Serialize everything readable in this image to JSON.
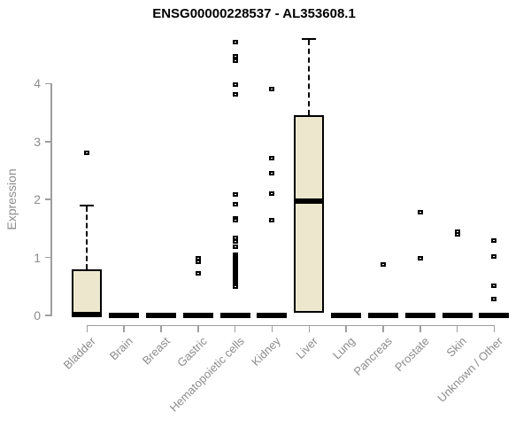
{
  "chart_data": {
    "type": "boxplot",
    "title": "ENSG00000228537 - AL353608.1",
    "xlabel": "",
    "ylabel": "Expression",
    "ylim": [
      0,
      4.9
    ],
    "yticks": [
      0,
      1,
      2,
      3,
      4
    ],
    "grid": false,
    "legend": null,
    "categories": [
      "Bladder",
      "Brain",
      "Breast",
      "Gastric",
      "Hematopoietic cells",
      "Kidney",
      "Liver",
      "Lung",
      "Pancreas",
      "Prostate",
      "Skin",
      "Unknown / Other"
    ],
    "series": [
      {
        "name": "Bladder",
        "q1": 0,
        "median": 0.02,
        "q3": 0.79,
        "whisker_low": 0,
        "whisker_high": 1.91,
        "outliers": [
          2.81
        ]
      },
      {
        "name": "Brain",
        "q1": 0,
        "median": 0,
        "q3": 0,
        "whisker_low": 0,
        "whisker_high": 0,
        "outliers": []
      },
      {
        "name": "Breast",
        "q1": 0,
        "median": 0,
        "q3": 0,
        "whisker_low": 0,
        "whisker_high": 0,
        "outliers": []
      },
      {
        "name": "Gastric",
        "q1": 0,
        "median": 0,
        "q3": 0,
        "whisker_low": 0,
        "whisker_high": 0,
        "outliers": [
          0.99,
          0.92,
          0.73
        ]
      },
      {
        "name": "Hematopoietic cells",
        "q1": 0,
        "median": 0,
        "q3": 0,
        "whisker_low": 0,
        "whisker_high": 0,
        "outliers": [
          4.71,
          4.48,
          4.39,
          3.99,
          3.82,
          2.09,
          1.92,
          1.67,
          1.64,
          1.34,
          1.27,
          1.19,
          1.04,
          1.01,
          0.98,
          0.95,
          0.92,
          0.89,
          0.86,
          0.83,
          0.8,
          0.77,
          0.74,
          0.71,
          0.68,
          0.65,
          0.62,
          0.59,
          0.56,
          0.53,
          0.5
        ]
      },
      {
        "name": "Kidney",
        "q1": 0,
        "median": 0,
        "q3": 0,
        "whisker_low": 0,
        "whisker_high": 0,
        "outliers": [
          3.91,
          2.72,
          2.45,
          2.11,
          1.64
        ]
      },
      {
        "name": "Liver",
        "q1": 0.05,
        "median": 1.98,
        "q3": 3.46,
        "whisker_low": 0.05,
        "whisker_high": 4.79,
        "outliers": []
      },
      {
        "name": "Lung",
        "q1": 0,
        "median": 0,
        "q3": 0,
        "whisker_low": 0,
        "whisker_high": 0,
        "outliers": []
      },
      {
        "name": "Pancreas",
        "q1": 0,
        "median": 0,
        "q3": 0,
        "whisker_low": 0,
        "whisker_high": 0,
        "outliers": [
          0.88
        ]
      },
      {
        "name": "Prostate",
        "q1": 0,
        "median": 0,
        "q3": 0,
        "whisker_low": 0,
        "whisker_high": 0,
        "outliers": [
          1.78,
          0.98
        ]
      },
      {
        "name": "Skin",
        "q1": 0,
        "median": 0,
        "q3": 0,
        "whisker_low": 0,
        "whisker_high": 0,
        "outliers": [
          1.44,
          1.4
        ]
      },
      {
        "name": "Unknown / Other",
        "q1": 0,
        "median": 0,
        "q3": 0,
        "whisker_low": 0,
        "whisker_high": 0,
        "outliers": [
          1.29,
          1.02,
          0.51,
          0.29
        ]
      }
    ],
    "colors": {
      "box_fill": "#ede7cd",
      "box_border": "#000000",
      "median": "#000000",
      "outlier": "#000000",
      "axis_line": "#9e9e9e",
      "tick_label": "#8c8c8c",
      "title": "#000000",
      "background": "#ffffff"
    }
  }
}
